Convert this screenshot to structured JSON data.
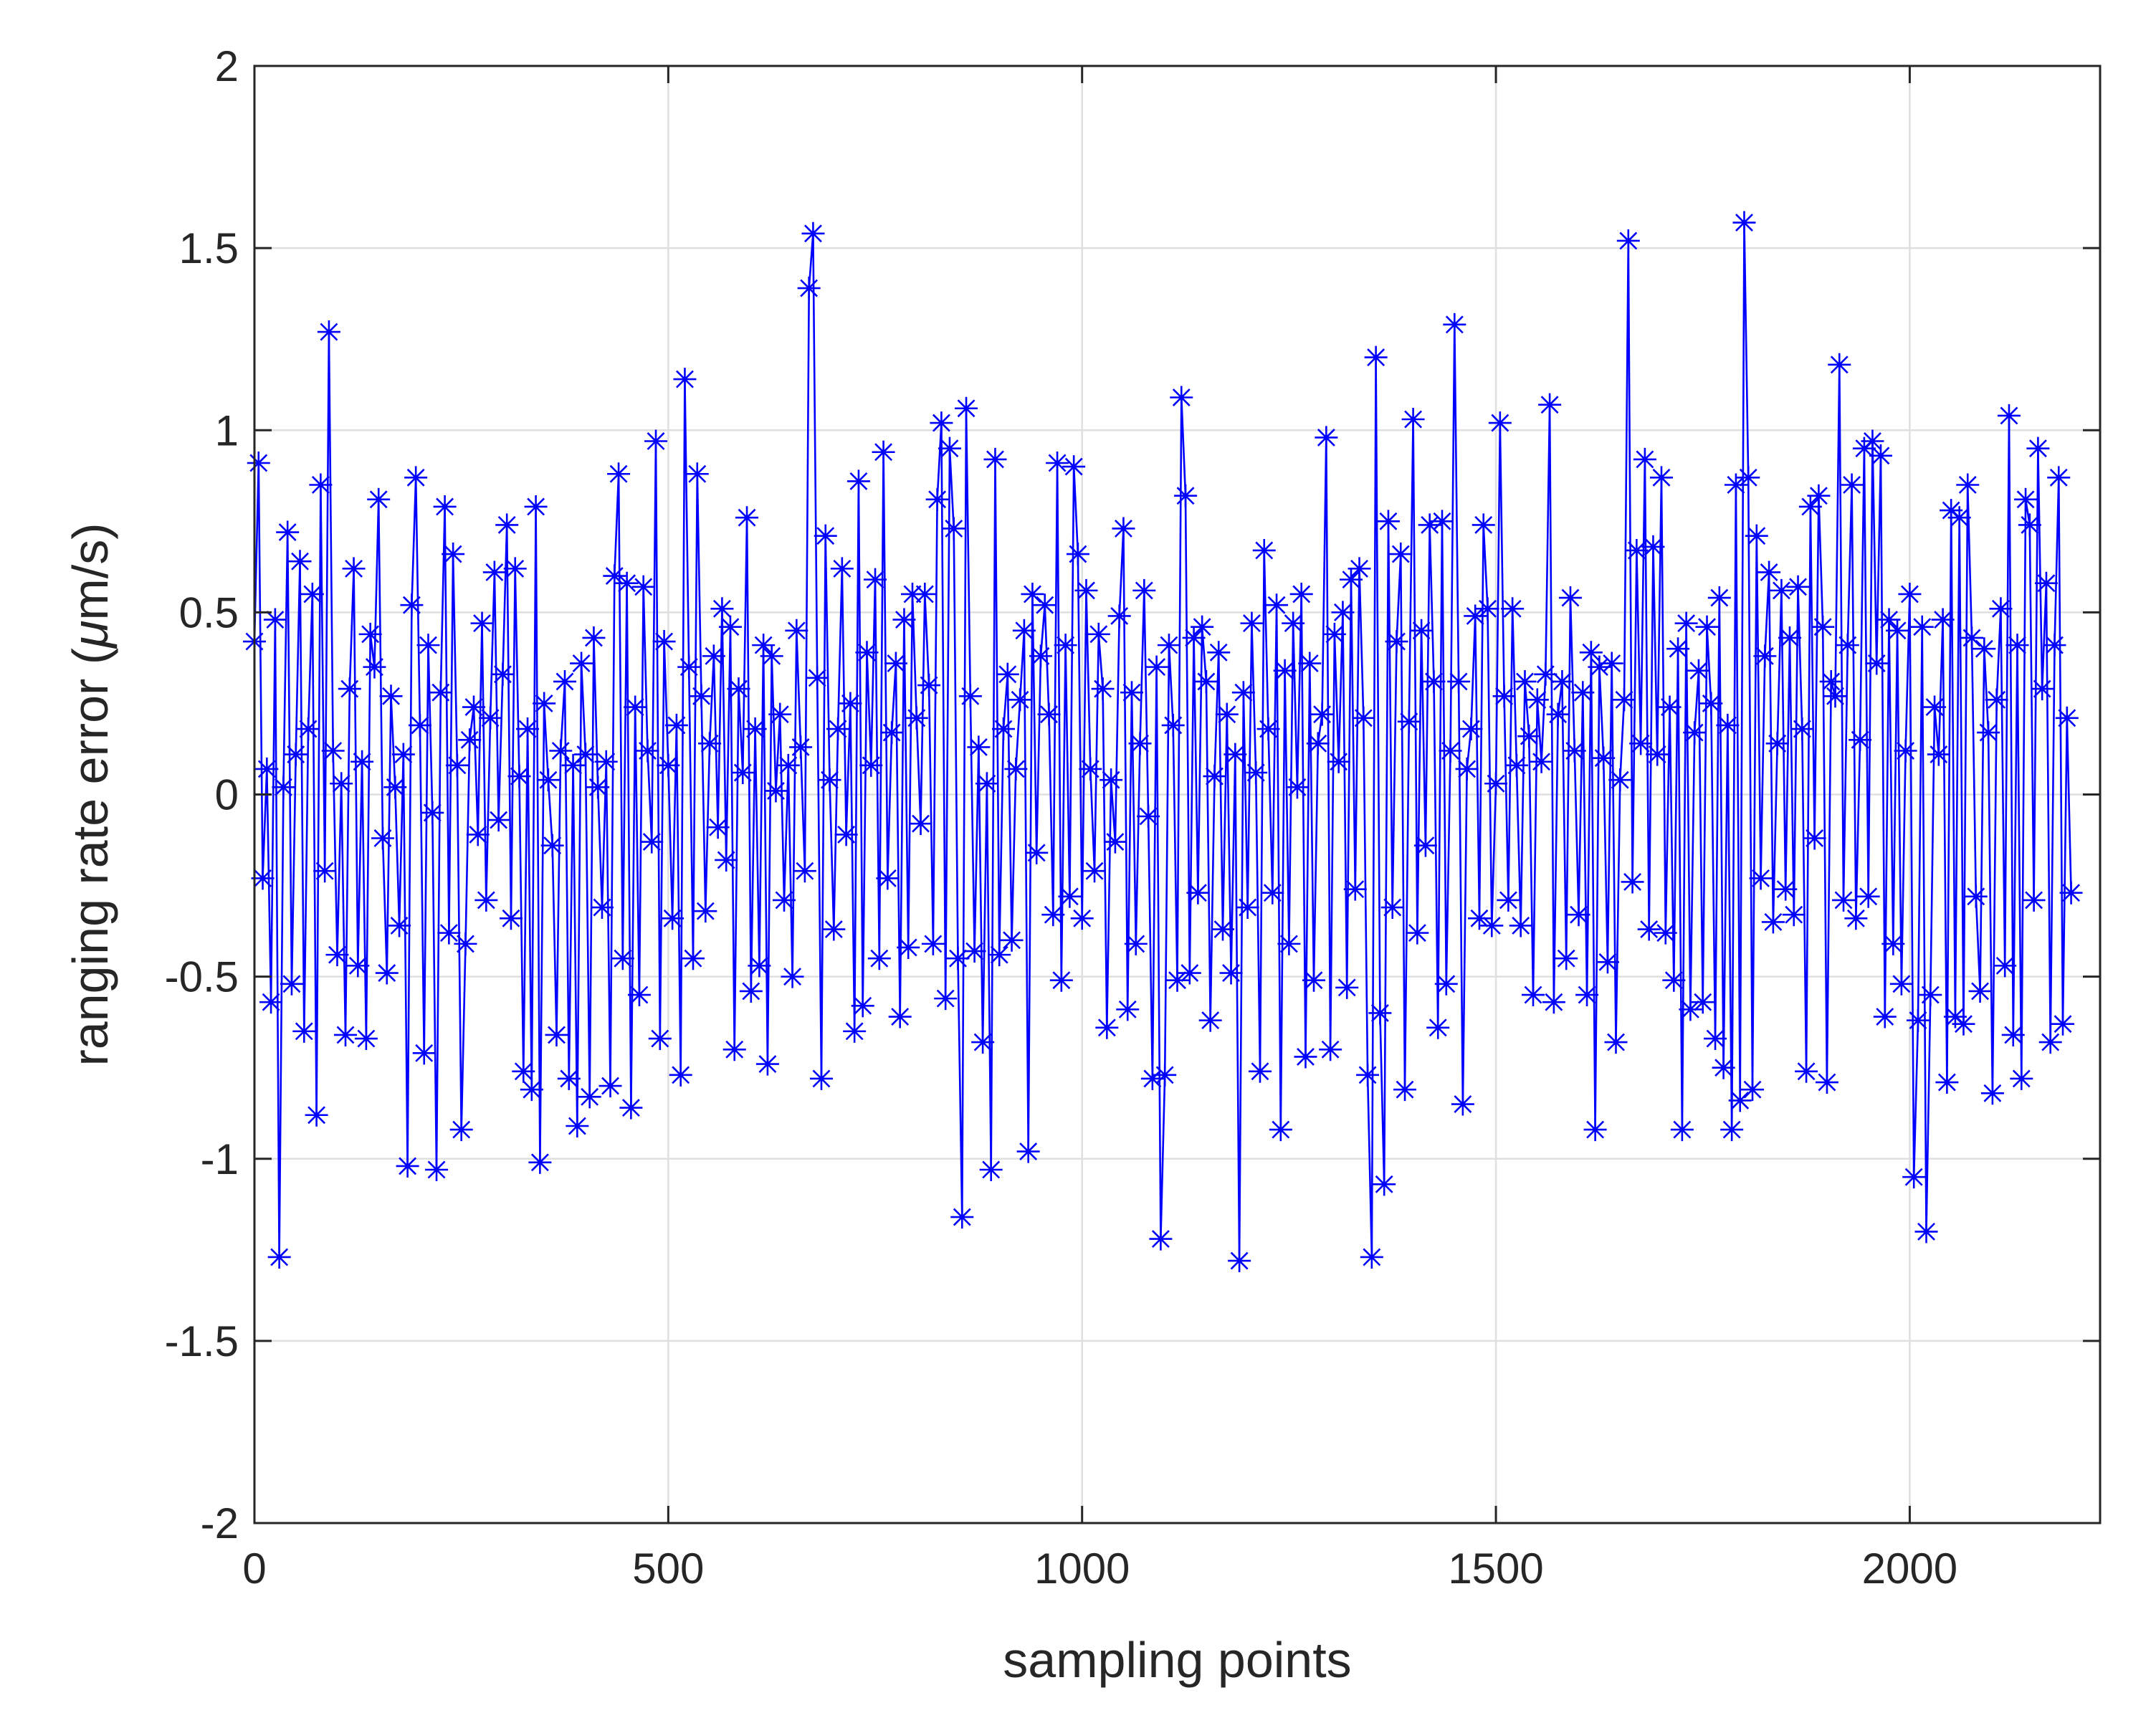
{
  "chart_data": {
    "type": "line",
    "markers": "asterisk",
    "xlabel": "sampling points",
    "ylabel_prefix": "ranging rate error (",
    "ylabel_mu": "μ",
    "ylabel_suffix": "m/s)",
    "xlim": [
      0,
      2230
    ],
    "ylim": [
      -2,
      2
    ],
    "xticks": [
      0,
      500,
      1000,
      1500,
      2000
    ],
    "yticks": [
      -2,
      -1.5,
      -1,
      -0.5,
      0,
      0.5,
      1,
      1.5,
      2
    ],
    "xtick_labels": [
      "0",
      "500",
      "1000",
      "1500",
      "2000"
    ],
    "ytick_labels": [
      "-2",
      "-1.5",
      "-1",
      "-0.5",
      "0",
      "0.5",
      "1",
      "1.5",
      "2"
    ],
    "grid": true,
    "colors": {
      "series": "#0000ff",
      "grid": "#dfdfdf",
      "axis": "#262626"
    },
    "series": [
      {
        "x_start": 0,
        "x_step": 5,
        "values": [
          0.42,
          0.91,
          -0.23,
          0.07,
          -0.57,
          0.48,
          -1.27,
          0.02,
          0.72,
          -0.52,
          0.11,
          0.64,
          -0.65,
          0.18,
          0.55,
          -0.88,
          0.85,
          -0.21,
          1.27,
          0.12,
          -0.44,
          0.03,
          -0.66,
          0.29,
          0.62,
          -0.47,
          0.09,
          -0.67,
          0.44,
          0.35,
          0.81,
          -0.12,
          -0.49,
          0.27,
          0.02,
          -0.36,
          0.11,
          -1.02,
          0.52,
          0.87,
          0.19,
          -0.71,
          0.41,
          -0.05,
          -1.03,
          0.28,
          0.79,
          -0.38,
          0.66,
          0.08,
          -0.92,
          -0.41,
          0.15,
          0.24,
          -0.11,
          0.47,
          -0.29,
          0.21,
          0.61,
          -0.07,
          0.33,
          0.74,
          -0.34,
          0.62,
          0.05,
          -0.76,
          0.18,
          -0.81,
          0.79,
          -1.01,
          0.25,
          0.04,
          -0.14,
          -0.66,
          0.12,
          0.31,
          -0.78,
          0.08,
          -0.91,
          0.36,
          0.11,
          -0.83,
          0.43,
          0.02,
          -0.31,
          0.09,
          -0.8,
          0.6,
          0.88,
          -0.45,
          0.58,
          -0.86,
          0.24,
          -0.55,
          0.57,
          0.12,
          -0.13,
          0.97,
          -0.67,
          0.42,
          0.08,
          -0.34,
          0.19,
          -0.77,
          1.14,
          0.35,
          -0.45,
          0.88,
          0.27,
          -0.32,
          0.14,
          0.38,
          -0.09,
          0.51,
          -0.18,
          0.46,
          -0.7,
          0.29,
          0.06,
          0.76,
          -0.54,
          0.18,
          -0.47,
          0.41,
          -0.74,
          0.38,
          0.01,
          0.22,
          -0.29,
          0.08,
          -0.5,
          0.45,
          0.13,
          -0.21,
          1.39,
          1.54,
          0.32,
          -0.78,
          0.71,
          0.04,
          -0.37,
          0.18,
          0.62,
          -0.11,
          0.25,
          -0.65,
          0.86,
          -0.58,
          0.39,
          0.08,
          0.59,
          -0.45,
          0.94,
          -0.23,
          0.17,
          0.36,
          -0.61,
          0.48,
          -0.42,
          0.55,
          0.21,
          -0.08,
          0.55,
          0.3,
          -0.41,
          0.81,
          1.02,
          -0.56,
          0.95,
          0.73,
          -0.45,
          -1.16,
          1.06,
          0.27,
          -0.43,
          0.13,
          -0.68,
          0.03,
          -1.03,
          0.92,
          -0.44,
          0.18,
          0.33,
          -0.4,
          0.07,
          0.26,
          0.45,
          -0.98,
          0.55,
          -0.16,
          0.38,
          0.52,
          0.22,
          -0.33,
          0.91,
          -0.51,
          0.41,
          -0.28,
          0.9,
          0.66,
          -0.34,
          0.56,
          0.07,
          -0.21,
          0.44,
          0.29,
          -0.64,
          0.04,
          -0.13,
          0.49,
          0.73,
          -0.59,
          0.28,
          -0.41,
          0.14,
          0.56,
          -0.06,
          -0.78,
          0.35,
          -1.22,
          -0.77,
          0.41,
          0.19,
          -0.51,
          1.09,
          0.82,
          -0.49,
          0.43,
          -0.27,
          0.46,
          0.31,
          -0.62,
          0.05,
          0.39,
          -0.37,
          0.22,
          -0.49,
          0.11,
          -1.28,
          0.28,
          -0.31,
          0.47,
          0.06,
          -0.76,
          0.67,
          0.18,
          -0.27,
          0.52,
          -0.92,
          0.34,
          -0.41,
          0.47,
          0.02,
          0.55,
          -0.72,
          0.36,
          -0.51,
          0.14,
          0.22,
          0.98,
          -0.7,
          0.44,
          0.09,
          0.5,
          -0.53,
          0.59,
          -0.26,
          0.62,
          0.21,
          -0.77,
          -1.27,
          1.2,
          -0.6,
          -1.07,
          0.75,
          -0.31,
          0.42,
          0.66,
          -0.81,
          0.2,
          1.03,
          -0.38,
          0.45,
          -0.14,
          0.74,
          0.31,
          -0.64,
          0.75,
          -0.52,
          0.12,
          1.29,
          0.31,
          -0.85,
          0.07,
          0.18,
          0.49,
          -0.34,
          0.74,
          0.51,
          -0.36,
          0.03,
          1.02,
          0.27,
          -0.29,
          0.51,
          0.08,
          -0.36,
          0.31,
          0.16,
          -0.55,
          0.26,
          0.09,
          0.33,
          1.07,
          -0.57,
          0.22,
          0.31,
          -0.45,
          0.54,
          0.12,
          -0.33,
          0.28,
          -0.55,
          0.39,
          -0.92,
          0.35,
          0.1,
          -0.46,
          0.36,
          -0.68,
          0.04,
          0.26,
          1.52,
          -0.24,
          0.67,
          0.14,
          0.92,
          -0.37,
          0.68,
          0.11,
          0.87,
          -0.38,
          0.24,
          -0.51,
          0.4,
          -0.92,
          0.47,
          -0.59,
          0.17,
          0.34,
          -0.57,
          0.46,
          0.25,
          -0.67,
          0.54,
          -0.75,
          0.19,
          -0.92,
          0.85,
          -0.84,
          1.57,
          0.87,
          -0.81,
          0.71,
          -0.23,
          0.38,
          0.61,
          -0.35,
          0.14,
          0.56,
          -0.26,
          0.43,
          -0.33,
          0.57,
          0.18,
          -0.76,
          0.79,
          -0.12,
          0.82,
          0.46,
          -0.79,
          0.31,
          0.27,
          1.18,
          -0.29,
          0.41,
          0.85,
          -0.34,
          0.15,
          0.95,
          -0.28,
          0.97,
          0.36,
          0.93,
          -0.61,
          0.48,
          -0.41,
          0.45,
          -0.52,
          0.12,
          0.55,
          -1.05,
          -0.62,
          0.46,
          -1.2,
          -0.55,
          0.24,
          0.11,
          0.48,
          -0.79,
          0.78,
          -0.61,
          0.76,
          -0.63,
          0.85,
          0.43,
          -0.28,
          -0.54,
          0.4,
          0.17,
          -0.82,
          0.26,
          0.51,
          -0.47,
          1.04,
          -0.66,
          0.41,
          -0.78,
          0.81,
          0.74,
          -0.29,
          0.95,
          0.29,
          0.58,
          -0.68,
          0.41,
          0.87,
          -0.63,
          0.21,
          -0.27
        ]
      }
    ]
  }
}
